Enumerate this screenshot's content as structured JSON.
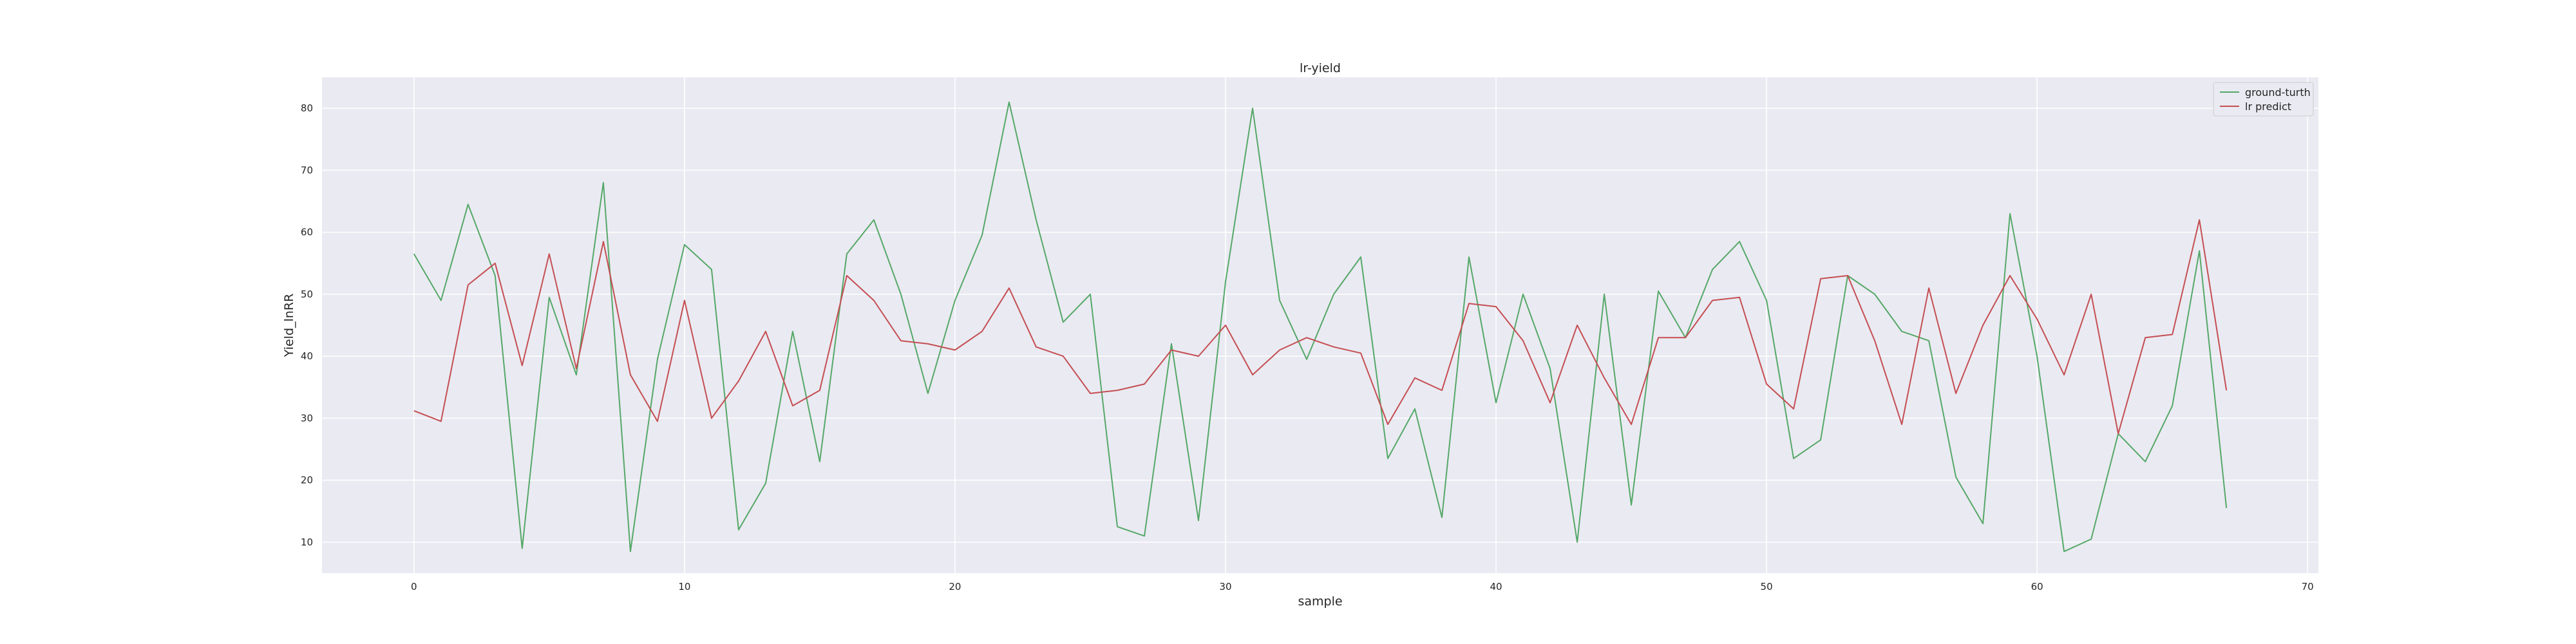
{
  "chart_data": {
    "type": "line",
    "title": "lr-yield",
    "xlabel": "sample",
    "ylabel": "Yield_lnRR",
    "xlim": [
      -3.4,
      70.4
    ],
    "ylim": [
      5,
      85
    ],
    "xticks": [
      0,
      10,
      20,
      30,
      40,
      50,
      60,
      70
    ],
    "yticks": [
      10,
      20,
      30,
      40,
      50,
      60,
      70,
      80
    ],
    "grid": true,
    "legend_position": "top-right",
    "x": [
      0,
      1,
      2,
      3,
      4,
      5,
      6,
      7,
      8,
      9,
      10,
      11,
      12,
      13,
      14,
      15,
      16,
      17,
      18,
      19,
      20,
      21,
      22,
      23,
      24,
      25,
      26,
      27,
      28,
      29,
      30,
      31,
      32,
      33,
      34,
      35,
      36,
      37,
      38,
      39,
      40,
      41,
      42,
      43,
      44,
      45,
      46,
      47,
      48,
      49,
      50,
      51,
      52,
      53,
      54,
      55,
      56,
      57,
      58,
      59,
      60,
      61,
      62,
      63,
      64,
      65,
      66,
      67
    ],
    "series": [
      {
        "name": "ground-turth",
        "color": "#55a868",
        "values": [
          56.5,
          49,
          64.5,
          53,
          9,
          49.5,
          37,
          68,
          8.5,
          39.5,
          58,
          54,
          12,
          19.5,
          44,
          23,
          56.5,
          62,
          50,
          34,
          49,
          59.5,
          81,
          62,
          45.5,
          50,
          12.5,
          11,
          42,
          13.5,
          52,
          80,
          49,
          39.5,
          50,
          56,
          23.5,
          31.5,
          14,
          56,
          32.5,
          50,
          38,
          10,
          50,
          16,
          50.5,
          43,
          54,
          58.5,
          49,
          23.5,
          26.5,
          53,
          50,
          44,
          42.5,
          20.5,
          13,
          63,
          40,
          8.5,
          10.5,
          27.5,
          23,
          32,
          57,
          15.5
        ]
      },
      {
        "name": "lr predict",
        "color": "#c44e52",
        "values": [
          31.2,
          29.5,
          51.5,
          55,
          38.5,
          56.5,
          38,
          58.5,
          37,
          29.5,
          49,
          30,
          36,
          44,
          32,
          34.5,
          53,
          49,
          42.5,
          42,
          41,
          44,
          51,
          41.5,
          40,
          34,
          34.5,
          35.5,
          41,
          40,
          45,
          37,
          41,
          43,
          41.5,
          40.5,
          29,
          36.5,
          34.5,
          48.5,
          48,
          42.5,
          32.5,
          45,
          36.5,
          29,
          43,
          43,
          49,
          49.5,
          35.5,
          31.5,
          52.5,
          53,
          42.5,
          29,
          51,
          34,
          45,
          53,
          46,
          37,
          50,
          27.5,
          43,
          43.5,
          62,
          34.5
        ]
      }
    ]
  }
}
